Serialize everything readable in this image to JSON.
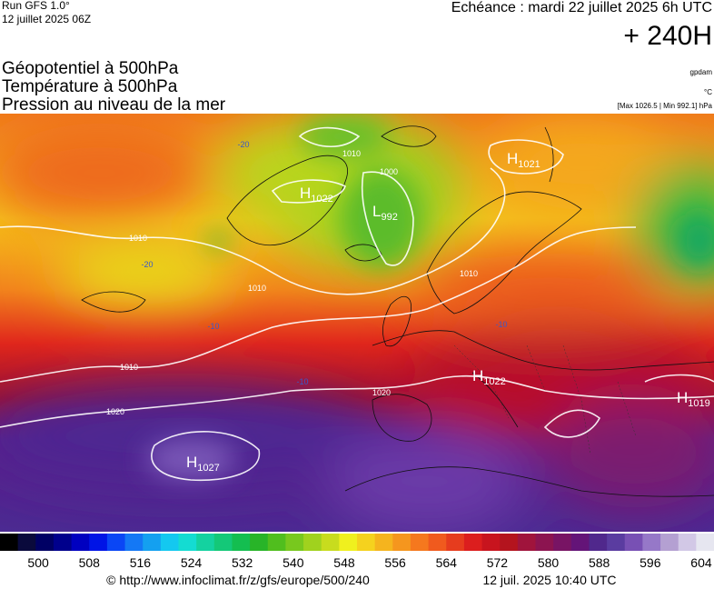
{
  "header": {
    "run": "Run GFS 1.0°",
    "run_date": "12 juillet 2025 06Z",
    "forecast": "Echéance : mardi 22 juillet 2025 6h UTC",
    "lead": "+ 240H"
  },
  "legend": {
    "lines": [
      "Géopotentiel à 500hPa",
      "Température à 500hPa",
      "Pression au niveau de la mer"
    ],
    "units": [
      "gpdam",
      "°C",
      "[Max 1026.5 | Min 992.1] hPa"
    ]
  },
  "map": {
    "centers": [
      {
        "letter": "H",
        "value": "1021"
      },
      {
        "letter": "H",
        "value": "1022"
      },
      {
        "letter": "L",
        "value": "992"
      },
      {
        "letter": "H",
        "value": "1022"
      },
      {
        "letter": "H",
        "value": "1019"
      },
      {
        "letter": "H",
        "value": "1027"
      }
    ],
    "isobar_labels": [
      "1010",
      "1010",
      "1020",
      "1020",
      "1010",
      "1000",
      "1010",
      "1010"
    ],
    "isotherm_labels": [
      "-10",
      "-10",
      "-10",
      "-20",
      "-20"
    ]
  },
  "scale": {
    "lim": [
      494,
      606
    ],
    "ticks": [
      500,
      508,
      516,
      524,
      532,
      540,
      548,
      556,
      564,
      572,
      580,
      588,
      596,
      604
    ],
    "colors": [
      "#000000",
      "#0a0a3c",
      "#000064",
      "#00008c",
      "#0000c0",
      "#0014e6",
      "#0a46f5",
      "#1478f5",
      "#14a0f0",
      "#14c8f0",
      "#14dcd2",
      "#14d2a0",
      "#14c878",
      "#14be50",
      "#28b428",
      "#50be1e",
      "#78c81e",
      "#a0d21e",
      "#c8dc1e",
      "#f0f01e",
      "#f5d21e",
      "#f5b41e",
      "#f5961e",
      "#f5781e",
      "#f05a1e",
      "#e63c1e",
      "#dc1e1e",
      "#c8141e",
      "#b4141e",
      "#a0143c",
      "#8c1450",
      "#781464",
      "#641478",
      "#50288c",
      "#5a3ca0",
      "#7850b4",
      "#9678c8",
      "#b4a0d2",
      "#d2c8e6",
      "#e6e6f0"
    ]
  },
  "footer": {
    "source": "© http://www.infoclimat.fr/z/gfs/europe/500/240",
    "timestamp": "12 juil. 2025 10:40 UTC"
  }
}
